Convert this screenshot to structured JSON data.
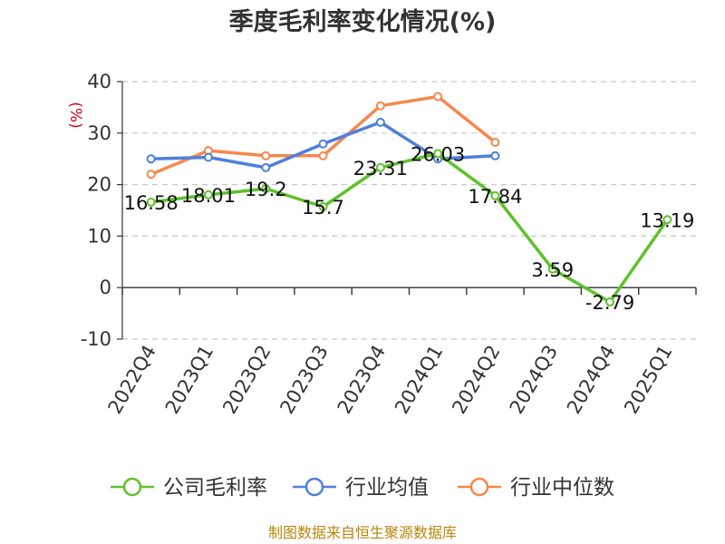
{
  "chart_data": {
    "type": "line",
    "title": "季度毛利率变化情况(%)",
    "ylabel": "(%)",
    "ylim": [
      -10,
      40
    ],
    "yticks": [
      -10,
      0,
      10,
      20,
      30,
      40
    ],
    "grid": true,
    "legend_position": "bottom",
    "categories": [
      "2022Q4",
      "2023Q1",
      "2023Q2",
      "2023Q3",
      "2023Q4",
      "2024Q1",
      "2024Q2",
      "2024Q3",
      "2024Q4",
      "2025Q1"
    ],
    "series": [
      {
        "name": "公司毛利率",
        "color": "#5ec22b",
        "values": [
          16.58,
          18.01,
          19.2,
          15.7,
          23.31,
          26.03,
          17.84,
          3.59,
          -2.79,
          13.19
        ],
        "labels": [
          "16.58",
          "18.01",
          "19.2",
          "15.7",
          "23.31",
          "26.03",
          "17.84",
          "3.59",
          "-2.79",
          "13.19"
        ]
      },
      {
        "name": "行业均值",
        "color": "#4f7fdb",
        "values": [
          25.0,
          25.3,
          23.3,
          27.9,
          32.1,
          25.0,
          25.6,
          null,
          null,
          null
        ]
      },
      {
        "name": "行业中位数",
        "color": "#f5874f",
        "values": [
          22.0,
          26.6,
          25.6,
          25.6,
          35.3,
          37.1,
          28.2,
          null,
          null,
          null
        ]
      }
    ],
    "source": "制图数据来自恒生聚源数据库"
  }
}
